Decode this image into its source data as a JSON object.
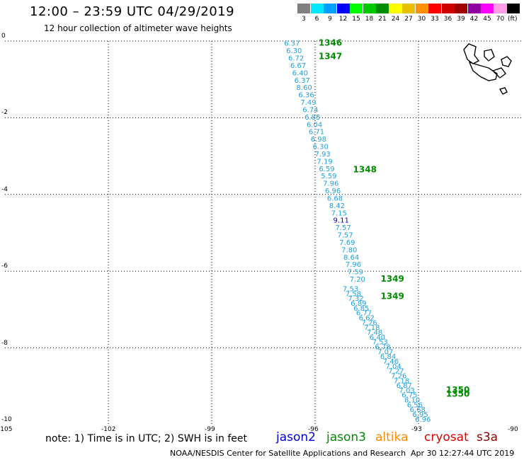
{
  "header": {
    "title": "12:00 – 23:59 UTC 04/29/2019",
    "subtitle": "12 hour collection of altimeter wave heights"
  },
  "legend": {
    "unit": "(ft)",
    "items": [
      {
        "label": "3",
        "color": "#808080"
      },
      {
        "label": "6",
        "color": "#00e8ff"
      },
      {
        "label": "9",
        "color": "#00a0ff"
      },
      {
        "label": "12",
        "color": "#0000ff"
      },
      {
        "label": "15",
        "color": "#00ff00"
      },
      {
        "label": "18",
        "color": "#00c800"
      },
      {
        "label": "21",
        "color": "#008c00"
      },
      {
        "label": "24",
        "color": "#ffff00"
      },
      {
        "label": "27",
        "color": "#e8c000"
      },
      {
        "label": "30",
        "color": "#ff9000"
      },
      {
        "label": "33",
        "color": "#ff0000"
      },
      {
        "label": "36",
        "color": "#d00000"
      },
      {
        "label": "39",
        "color": "#a00000"
      },
      {
        "label": "42",
        "color": "#9000a0"
      },
      {
        "label": "45",
        "color": "#ff00ff"
      },
      {
        "label": "70",
        "color": "#ff9ce8"
      },
      {
        "label": "",
        "color": "#000000"
      }
    ]
  },
  "map": {
    "lon_range": [
      -105,
      -90
    ],
    "lat_range": [
      -10,
      0
    ],
    "lon_ticks": [
      -105,
      -102,
      -99,
      -96,
      -93,
      -90
    ],
    "lat_ticks": [
      0,
      -2,
      -4,
      -6,
      -8,
      -10
    ],
    "wave_color_low": "#1ea0e0",
    "wave_color_high": "#0000c8",
    "time_color": "#008c00",
    "track_a": {
      "start": [
        -96.9,
        -0.05
      ],
      "end": [
        -95.0,
        -6.2
      ],
      "values": [
        "6.37",
        "6.30",
        "6.72",
        "6.67",
        "6.40",
        "6.37",
        "8.60",
        "6.36",
        "7.49",
        "6.74",
        "6.85",
        "6.04",
        "6.71",
        "6.98",
        "6.30",
        "7.93",
        "7.19",
        "6.59",
        "5.59",
        "7.96",
        "6.96",
        "6.68",
        "8.42",
        "7.15",
        "9.11",
        "7.57",
        "7.57",
        "7.69",
        "7.80",
        "8.64",
        "7.96",
        "7.59",
        "7.20"
      ]
    },
    "track_b": {
      "start": [
        -95.2,
        -6.45
      ],
      "end": [
        -93.1,
        -9.85
      ],
      "values": [
        "7.53",
        "7.58",
        "7.32",
        "6.89",
        "6.85",
        "6.77",
        "6.62",
        "7.26",
        "7.18",
        "7.48",
        "6.40",
        "7.53",
        "6.78",
        "7.07",
        "6.84",
        "7.46",
        "7.04",
        "7.27",
        "7.26",
        "7.18",
        "6.87",
        "7.03",
        "6.75",
        "8.10",
        "6.56",
        "6.68",
        "6.95",
        "6.96"
      ]
    },
    "time_labels": [
      {
        "text": "1346",
        "lon": -95.9,
        "lat": -0.05
      },
      {
        "text": "1347",
        "lon": -95.9,
        "lat": -0.4
      },
      {
        "text": "1348",
        "lon": -94.9,
        "lat": -3.35
      },
      {
        "text": "1349",
        "lon": -94.1,
        "lat": -6.2
      },
      {
        "text": "1349",
        "lon": -94.1,
        "lat": -6.65
      },
      {
        "text": "1350",
        "lon": -92.2,
        "lat": -9.1
      },
      {
        "text": "1350",
        "lon": -92.2,
        "lat": -9.2
      }
    ]
  },
  "footer": {
    "note": "note:  1) Time is in UTC;  2) SWH is in feet",
    "satellites": [
      {
        "name": "jason2",
        "color": "#0000dd"
      },
      {
        "name": "jason3",
        "color": "#008c00"
      },
      {
        "name": "altika",
        "color": "#ff8c00"
      },
      {
        "name": "cryosat",
        "color": "#dd0000"
      },
      {
        "name": "s3a",
        "color": "#8b0000"
      }
    ],
    "credit": "NOAA/NESDIS Center for Satellite Applications and Research",
    "timestamp": "Apr 30 12:27:44 UTC 2019"
  }
}
